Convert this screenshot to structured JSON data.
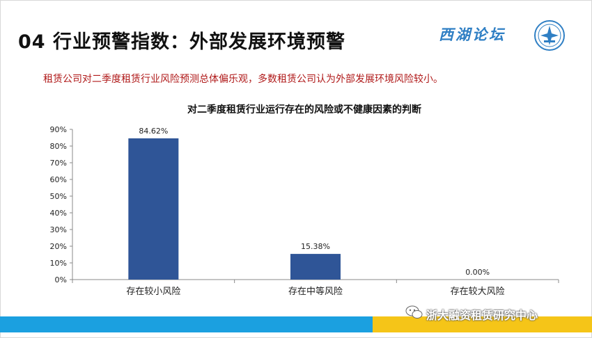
{
  "slide": {
    "title": "04 行业预警指数：外部发展环境预警",
    "brand": "西湖论坛",
    "subtitle": "租赁公司对二季度租赁行业风险预测总体偏乐观，多数租赁公司认为外部发展环境风险较小。",
    "footer": "浙大融资租赁研究中心"
  },
  "colors": {
    "bar": "#2f5597",
    "subtitle": "#b01a1a",
    "footer_blue": "#1ba0e0",
    "footer_yellow": "#f5c518"
  },
  "chart_data": {
    "type": "bar",
    "title": "对二季度租赁行业运行存在的风险或不健康因素的判断",
    "categories": [
      "存在较小风险",
      "存在中等风险",
      "存在较大风险"
    ],
    "values": [
      84.62,
      15.38,
      0.0
    ],
    "value_labels": [
      "84.62%",
      "15.38%",
      "0.00%"
    ],
    "ylim": [
      0,
      90
    ],
    "yticks": [
      "0%",
      "10%",
      "20%",
      "30%",
      "40%",
      "50%",
      "60%",
      "70%",
      "80%",
      "90%"
    ],
    "grid": false,
    "legend": "none"
  }
}
